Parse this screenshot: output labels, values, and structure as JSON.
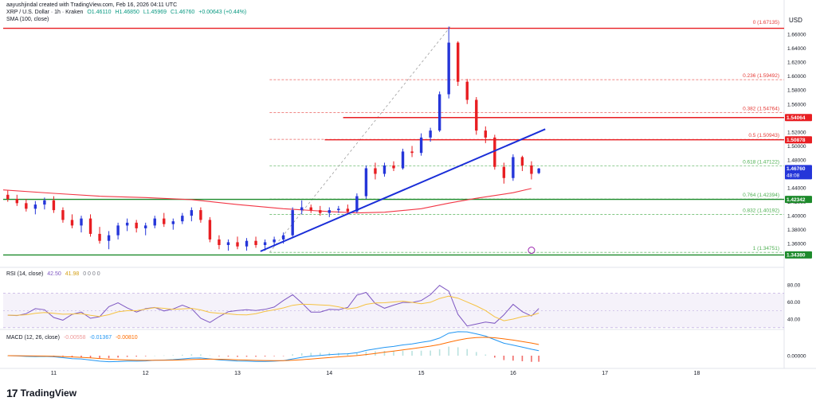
{
  "header": {
    "line1": "aayushjindal created with TradingView.com, Feb 16, 2026 04:11 UTC",
    "line2": {
      "symbol": "XRP / U.S. Dollar · 1h · Kraken",
      "o": "O1.46110",
      "h": "H1.46850",
      "l": "L1.45969",
      "c": "C1.46760",
      "chg": "+0.00643 (+0.44%)"
    },
    "sma": "SMA (100, close)"
  },
  "currency": "USD",
  "price_axis": {
    "ticks": [
      "1.66000",
      "1.64000",
      "1.62000",
      "1.60000",
      "1.58000",
      "1.56000",
      "1.54000",
      "1.52000",
      "1.50000",
      "1.48000",
      "1.46000",
      "1.44000",
      "1.42000",
      "1.40000",
      "1.38000",
      "1.36000"
    ],
    "tick_values": [
      1.66,
      1.64,
      1.62,
      1.6,
      1.58,
      1.56,
      1.54,
      1.52,
      1.5,
      1.48,
      1.46,
      1.44,
      1.42,
      1.4,
      1.38,
      1.36
    ],
    "labels": {
      "level_1540": "1.54064",
      "level_1508": "1.50878",
      "current_price": "1.46760",
      "current_timer": "48:08",
      "level_1423": "1.42342",
      "level_1343": "1.34380"
    }
  },
  "fib": {
    "levels": [
      {
        "label": "0 (1.67135)",
        "value": 1.67135
      },
      {
        "label": "0.236 (1.59492)",
        "value": 1.59492
      },
      {
        "label": "0.382 (1.54764)",
        "value": 1.54764
      },
      {
        "label": "0.5 (1.50943)",
        "value": 1.50943
      },
      {
        "label": "0.618 (1.47122)",
        "value": 1.47122
      },
      {
        "label": "0.764 (1.42394)",
        "value": 1.42394
      },
      {
        "label": "0.832 (1.40192)",
        "value": 1.40192
      },
      {
        "label": "1 (1.34751)",
        "value": 1.34751
      }
    ]
  },
  "rsi": {
    "title": "RSI (14, close)",
    "value1": "42.50",
    "value2": "41.98",
    "zeros": "0 0 0 0",
    "ticks": [
      "80.00",
      "60.00",
      "40.00"
    ],
    "tick_values": [
      80,
      60,
      40
    ]
  },
  "macd": {
    "title": "MACD (12, 26, close)",
    "v1": "-0.00558",
    "v2": "-0.01367",
    "v3": "-0.00810",
    "ticks": [
      "0.00000"
    ]
  },
  "x_axis": {
    "labels": [
      "11",
      "12",
      "13",
      "14",
      "15",
      "16",
      "17",
      "18"
    ],
    "days": [
      11,
      12,
      13,
      14,
      15,
      16,
      17,
      18
    ]
  },
  "logo_text": "TradingView",
  "logo_mark": "17",
  "colors": {
    "up": "#2536d9",
    "down": "#e81e22",
    "sma": "#f23645",
    "trendline": "#1a2ed8",
    "resistance": "#e81e22",
    "support": "#1d8a2b",
    "fib_red": "#e53935",
    "fib_green": "#4caf50",
    "rsi_line": "#7e57c2",
    "rsi_ma": "#f5c242",
    "macd_line": "#2196f3",
    "signal_line": "#ff6d00"
  },
  "chart_data": {
    "type": "candlestick",
    "title": "XRP / U.S. Dollar · 1h · Kraken",
    "x_unit": "day (Feb 2026)",
    "xlim": [
      10.45,
      18.95
    ],
    "ylim": [
      1.342,
      1.676
    ],
    "candles": [
      {
        "t": 10.5,
        "o": 1.43,
        "h": 1.436,
        "l": 1.42,
        "c": 1.424
      },
      {
        "t": 10.6,
        "o": 1.424,
        "h": 1.43,
        "l": 1.414,
        "c": 1.418
      },
      {
        "t": 10.7,
        "o": 1.418,
        "h": 1.424,
        "l": 1.406,
        "c": 1.41
      },
      {
        "t": 10.8,
        "o": 1.41,
        "h": 1.421,
        "l": 1.402,
        "c": 1.416
      },
      {
        "t": 10.9,
        "o": 1.416,
        "h": 1.426,
        "l": 1.409,
        "c": 1.422
      },
      {
        "t": 11.0,
        "o": 1.422,
        "h": 1.428,
        "l": 1.404,
        "c": 1.408
      },
      {
        "t": 11.1,
        "o": 1.408,
        "h": 1.412,
        "l": 1.39,
        "c": 1.394
      },
      {
        "t": 11.2,
        "o": 1.394,
        "h": 1.402,
        "l": 1.382,
        "c": 1.386
      },
      {
        "t": 11.3,
        "o": 1.386,
        "h": 1.4,
        "l": 1.376,
        "c": 1.396
      },
      {
        "t": 11.4,
        "o": 1.396,
        "h": 1.402,
        "l": 1.37,
        "c": 1.374
      },
      {
        "t": 11.5,
        "o": 1.374,
        "h": 1.384,
        "l": 1.36,
        "c": 1.364
      },
      {
        "t": 11.6,
        "o": 1.364,
        "h": 1.378,
        "l": 1.352,
        "c": 1.372
      },
      {
        "t": 11.7,
        "o": 1.372,
        "h": 1.39,
        "l": 1.366,
        "c": 1.386
      },
      {
        "t": 11.8,
        "o": 1.386,
        "h": 1.396,
        "l": 1.378,
        "c": 1.39
      },
      {
        "t": 11.9,
        "o": 1.39,
        "h": 1.394,
        "l": 1.376,
        "c": 1.382
      },
      {
        "t": 12.0,
        "o": 1.382,
        "h": 1.39,
        "l": 1.372,
        "c": 1.386
      },
      {
        "t": 12.1,
        "o": 1.386,
        "h": 1.4,
        "l": 1.382,
        "c": 1.396
      },
      {
        "t": 12.2,
        "o": 1.396,
        "h": 1.404,
        "l": 1.384,
        "c": 1.388
      },
      {
        "t": 12.3,
        "o": 1.388,
        "h": 1.396,
        "l": 1.38,
        "c": 1.392
      },
      {
        "t": 12.4,
        "o": 1.392,
        "h": 1.404,
        "l": 1.388,
        "c": 1.4
      },
      {
        "t": 12.5,
        "o": 1.4,
        "h": 1.412,
        "l": 1.392,
        "c": 1.408
      },
      {
        "t": 12.6,
        "o": 1.408,
        "h": 1.412,
        "l": 1.39,
        "c": 1.394
      },
      {
        "t": 12.7,
        "o": 1.394,
        "h": 1.398,
        "l": 1.362,
        "c": 1.366
      },
      {
        "t": 12.8,
        "o": 1.366,
        "h": 1.372,
        "l": 1.352,
        "c": 1.358
      },
      {
        "t": 12.9,
        "o": 1.358,
        "h": 1.366,
        "l": 1.35,
        "c": 1.362
      },
      {
        "t": 13.0,
        "o": 1.362,
        "h": 1.37,
        "l": 1.352,
        "c": 1.356
      },
      {
        "t": 13.1,
        "o": 1.356,
        "h": 1.368,
        "l": 1.35,
        "c": 1.364
      },
      {
        "t": 13.2,
        "o": 1.364,
        "h": 1.37,
        "l": 1.354,
        "c": 1.358
      },
      {
        "t": 13.3,
        "o": 1.358,
        "h": 1.366,
        "l": 1.35,
        "c": 1.362
      },
      {
        "t": 13.4,
        "o": 1.362,
        "h": 1.37,
        "l": 1.356,
        "c": 1.366
      },
      {
        "t": 13.5,
        "o": 1.366,
        "h": 1.376,
        "l": 1.36,
        "c": 1.372
      },
      {
        "t": 13.6,
        "o": 1.372,
        "h": 1.412,
        "l": 1.37,
        "c": 1.408
      },
      {
        "t": 13.7,
        "o": 1.408,
        "h": 1.422,
        "l": 1.402,
        "c": 1.412
      },
      {
        "t": 13.8,
        "o": 1.412,
        "h": 1.416,
        "l": 1.404,
        "c": 1.408
      },
      {
        "t": 13.9,
        "o": 1.408,
        "h": 1.414,
        "l": 1.4,
        "c": 1.404
      },
      {
        "t": 14.0,
        "o": 1.404,
        "h": 1.412,
        "l": 1.398,
        "c": 1.408
      },
      {
        "t": 14.1,
        "o": 1.408,
        "h": 1.414,
        "l": 1.404,
        "c": 1.41
      },
      {
        "t": 14.2,
        "o": 1.41,
        "h": 1.416,
        "l": 1.402,
        "c": 1.406
      },
      {
        "t": 14.3,
        "o": 1.406,
        "h": 1.432,
        "l": 1.404,
        "c": 1.428
      },
      {
        "t": 14.4,
        "o": 1.428,
        "h": 1.472,
        "l": 1.424,
        "c": 1.468
      },
      {
        "t": 14.5,
        "o": 1.468,
        "h": 1.476,
        "l": 1.452,
        "c": 1.46
      },
      {
        "t": 14.6,
        "o": 1.46,
        "h": 1.476,
        "l": 1.456,
        "c": 1.472
      },
      {
        "t": 14.7,
        "o": 1.472,
        "h": 1.478,
        "l": 1.464,
        "c": 1.468
      },
      {
        "t": 14.8,
        "o": 1.468,
        "h": 1.496,
        "l": 1.466,
        "c": 1.492
      },
      {
        "t": 14.9,
        "o": 1.492,
        "h": 1.5,
        "l": 1.484,
        "c": 1.49
      },
      {
        "t": 15.0,
        "o": 1.49,
        "h": 1.518,
        "l": 1.486,
        "c": 1.512
      },
      {
        "t": 15.1,
        "o": 1.512,
        "h": 1.526,
        "l": 1.506,
        "c": 1.522
      },
      {
        "t": 15.2,
        "o": 1.522,
        "h": 1.578,
        "l": 1.52,
        "c": 1.574
      },
      {
        "t": 15.3,
        "o": 1.574,
        "h": 1.671,
        "l": 1.568,
        "c": 1.648
      },
      {
        "t": 15.4,
        "o": 1.648,
        "h": 1.65,
        "l": 1.586,
        "c": 1.592
      },
      {
        "t": 15.5,
        "o": 1.592,
        "h": 1.596,
        "l": 1.56,
        "c": 1.566
      },
      {
        "t": 15.6,
        "o": 1.566,
        "h": 1.57,
        "l": 1.516,
        "c": 1.522
      },
      {
        "t": 15.7,
        "o": 1.522,
        "h": 1.528,
        "l": 1.504,
        "c": 1.512
      },
      {
        "t": 15.8,
        "o": 1.512,
        "h": 1.516,
        "l": 1.466,
        "c": 1.47
      },
      {
        "t": 15.9,
        "o": 1.47,
        "h": 1.476,
        "l": 1.446,
        "c": 1.454
      },
      {
        "t": 16.0,
        "o": 1.454,
        "h": 1.488,
        "l": 1.45,
        "c": 1.484
      },
      {
        "t": 16.1,
        "o": 1.484,
        "h": 1.486,
        "l": 1.464,
        "c": 1.472
      },
      {
        "t": 16.2,
        "o": 1.472,
        "h": 1.478,
        "l": 1.452,
        "c": 1.46
      },
      {
        "t": 16.28,
        "o": 1.4611,
        "h": 1.4685,
        "l": 1.45969,
        "c": 1.4676
      }
    ],
    "sma100": [
      [
        10.45,
        1.437
      ],
      [
        11.0,
        1.432
      ],
      [
        11.5,
        1.428
      ],
      [
        12.0,
        1.426
      ],
      [
        12.5,
        1.423
      ],
      [
        13.0,
        1.416
      ],
      [
        13.5,
        1.41
      ],
      [
        14.0,
        1.406
      ],
      [
        14.3,
        1.404
      ],
      [
        14.6,
        1.405
      ],
      [
        15.0,
        1.41
      ],
      [
        15.3,
        1.418
      ],
      [
        15.6,
        1.425
      ],
      [
        16.0,
        1.433
      ],
      [
        16.2,
        1.439
      ]
    ],
    "trendline": [
      [
        13.25,
        1.349
      ],
      [
        16.35,
        1.524
      ]
    ],
    "fib_diagonal": [
      [
        13.35,
        1.3475
      ],
      [
        15.32,
        1.6713
      ]
    ],
    "hlines": [
      {
        "value": 1.6685,
        "color": "red",
        "from": 10.45,
        "to": 18.95
      },
      {
        "value": 1.54064,
        "color": "red",
        "from": 14.15,
        "to": 18.95
      },
      {
        "value": 1.50878,
        "color": "red",
        "from": 13.95,
        "to": 18.95
      },
      {
        "value": 1.42342,
        "color": "green",
        "from": 10.45,
        "to": 18.95
      },
      {
        "value": 1.3438,
        "color": "green",
        "from": 10.45,
        "to": 18.95
      }
    ]
  }
}
